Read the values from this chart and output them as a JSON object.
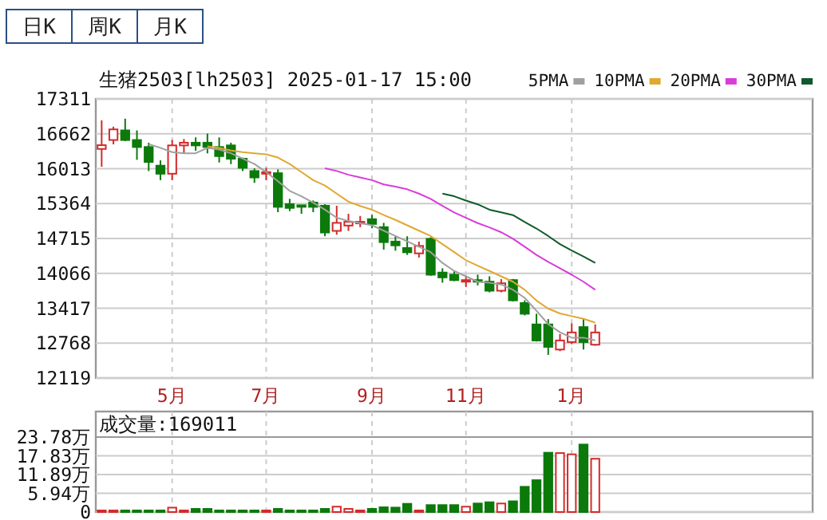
{
  "chart_data": [
    {
      "type": "candlestick",
      "title": "生猪2503[lh2503]  2025-01-17 15:00",
      "annotations": [
        "日K",
        "周K",
        "月K"
      ],
      "categories": [
        null,
        null,
        null,
        null,
        null,
        null,
        "5月",
        null,
        null,
        null,
        null,
        null,
        null,
        null,
        "7月",
        null,
        null,
        null,
        null,
        null,
        null,
        null,
        null,
        "9月",
        null,
        null,
        null,
        null,
        null,
        null,
        null,
        "11月",
        null,
        null,
        null,
        null,
        null,
        null,
        null,
        null,
        "1月",
        null,
        null,
        null,
        null,
        null,
        null,
        null,
        null,
        null,
        null,
        null,
        null,
        null,
        null,
        null,
        null,
        null,
        null,
        null,
        null
      ],
      "ohlc": [
        [
          16380,
          16913,
          16049,
          16450
        ],
        [
          16546,
          16794,
          16466,
          16744
        ],
        [
          16725,
          16943,
          16526,
          16546
        ],
        [
          16546,
          16725,
          16178,
          16416
        ],
        [
          16416,
          16496,
          15969,
          16138
        ],
        [
          16069,
          16168,
          15800,
          15919
        ],
        [
          15919,
          16546,
          15800,
          16446
        ],
        [
          16446,
          16565,
          16297,
          16496
        ],
        [
          16496,
          16595,
          16347,
          16446
        ],
        [
          16496,
          16665,
          16297,
          16416
        ],
        [
          16416,
          16595,
          16128,
          16247
        ],
        [
          16446,
          16496,
          16098,
          16198
        ],
        [
          16198,
          16218,
          15969,
          16029
        ],
        [
          15969,
          16019,
          15750,
          15850
        ],
        [
          15919,
          16029,
          15800,
          15949
        ],
        [
          15929,
          15999,
          15204,
          15303
        ],
        [
          15353,
          15452,
          15224,
          15283
        ],
        [
          15333,
          15333,
          15174,
          15313
        ],
        [
          15383,
          15422,
          15204,
          15303
        ],
        [
          15323,
          15353,
          14756,
          14826
        ],
        [
          14856,
          15323,
          14786,
          15005
        ],
        [
          14955,
          15174,
          14856,
          15025
        ],
        [
          15015,
          15134,
          14925,
          15025
        ],
        [
          15074,
          15154,
          14905,
          14985
        ],
        [
          14925,
          15005,
          14508,
          14647
        ],
        [
          14657,
          14756,
          14488,
          14587
        ],
        [
          14538,
          14756,
          14409,
          14458
        ],
        [
          14438,
          14657,
          14359,
          14577
        ],
        [
          14707,
          14737,
          14021,
          14041
        ],
        [
          14081,
          14160,
          13892,
          13991
        ],
        [
          14041,
          14111,
          13921,
          13941
        ],
        [
          13911,
          14011,
          13812,
          13941
        ],
        [
          13941,
          14041,
          13842,
          13911
        ],
        [
          13911,
          14011,
          13713,
          13743
        ],
        [
          13743,
          13961,
          13713,
          13882
        ],
        [
          13941,
          13961,
          13544,
          13564
        ],
        [
          13514,
          13564,
          13285,
          13315
        ],
        [
          13116,
          13315,
          12798,
          12818
        ],
        [
          13116,
          13216,
          12550,
          12699
        ],
        [
          12649,
          12937,
          12619,
          12818
        ],
        [
          12788,
          13136,
          12749,
          12967
        ],
        [
          13067,
          13216,
          12649,
          12788
        ],
        [
          12739,
          13116,
          12719,
          12967
        ],
        null,
        null,
        null,
        null,
        null,
        null,
        null,
        null,
        null,
        null,
        null,
        null,
        null,
        null,
        null,
        null,
        null,
        null
      ],
      "colors": [
        "#d42a2a",
        "#d42a2a",
        "#0b7a0b",
        "#0b7a0b",
        "#0b7a0b",
        "#0b7a0b",
        "#d42a2a",
        "#d42a2a",
        "#0b7a0b",
        "#0b7a0b",
        "#0b7a0b",
        "#0b7a0b",
        "#0b7a0b",
        "#0b7a0b",
        "#d42a2a",
        "#0b7a0b",
        "#0b7a0b",
        "#0b7a0b",
        "#0b7a0b",
        "#0b7a0b",
        "#d42a2a",
        "#d42a2a",
        "#d42a2a",
        "#0b7a0b",
        "#0b7a0b",
        "#0b7a0b",
        "#0b7a0b",
        "#d42a2a",
        "#0b7a0b",
        "#0b7a0b",
        "#0b7a0b",
        "#d42a2a",
        "#0b7a0b",
        "#0b7a0b",
        "#d42a2a",
        "#0b7a0b",
        "#0b7a0b",
        "#0b7a0b",
        "#0b7a0b",
        "#d42a2a",
        "#d42a2a",
        "#0b7a0b",
        "#d42a2a",
        null,
        null,
        null,
        null,
        null,
        null,
        null,
        null,
        null,
        null,
        null,
        null,
        null,
        null,
        null,
        null,
        null,
        null
      ],
      "series": [
        {
          "name": "5PMA",
          "type": "line",
          "color": "#a0a0a0",
          "values": [
            null,
            null,
            null,
            null,
            16470,
            16400,
            16320,
            16300,
            16300,
            16400,
            16370,
            16300,
            16200,
            16100,
            15950,
            15780,
            15600,
            15500,
            15380,
            15250,
            15100,
            15040,
            15000,
            14960,
            14860,
            14760,
            14660,
            14560,
            14460,
            14260,
            14110,
            14010,
            13910,
            13890,
            13860,
            13760,
            13610,
            13370,
            13120,
            12970,
            12870,
            12870,
            12820,
            null,
            null,
            null,
            null,
            null,
            null,
            null,
            null,
            null,
            null,
            null,
            null,
            null,
            null,
            null,
            null,
            null,
            null
          ]
        },
        {
          "name": "10PMA",
          "type": "line",
          "color": "#e0a830",
          "values": [
            null,
            null,
            null,
            null,
            null,
            null,
            null,
            null,
            null,
            16430,
            16400,
            16350,
            16320,
            16300,
            16280,
            16220,
            16100,
            15950,
            15800,
            15700,
            15550,
            15400,
            15320,
            15250,
            15150,
            15060,
            14960,
            14860,
            14760,
            14610,
            14460,
            14310,
            14210,
            14110,
            14010,
            13910,
            13760,
            13560,
            13410,
            13320,
            13270,
            13220,
            13150,
            null,
            null,
            null,
            null,
            null,
            null,
            null,
            null,
            null,
            null,
            null,
            null,
            null,
            null,
            null,
            null,
            null,
            null
          ]
        },
        {
          "name": "20PMA",
          "type": "line",
          "color": "#d93cd9",
          "values": [
            null,
            null,
            null,
            null,
            null,
            null,
            null,
            null,
            null,
            null,
            null,
            null,
            null,
            null,
            null,
            null,
            null,
            null,
            null,
            16020,
            15970,
            15900,
            15850,
            15800,
            15720,
            15680,
            15630,
            15550,
            15450,
            15320,
            15200,
            15100,
            15000,
            14920,
            14830,
            14710,
            14560,
            14410,
            14280,
            14160,
            14040,
            13910,
            13760,
            null,
            null,
            null,
            null,
            null,
            null,
            null,
            null,
            null,
            null,
            null,
            null,
            null,
            null,
            null,
            null,
            null,
            null
          ]
        },
        {
          "name": "30PMA",
          "type": "line",
          "color": "#0e5a2a",
          "values": [
            null,
            null,
            null,
            null,
            null,
            null,
            null,
            null,
            null,
            null,
            null,
            null,
            null,
            null,
            null,
            null,
            null,
            null,
            null,
            null,
            null,
            null,
            null,
            null,
            null,
            null,
            null,
            null,
            null,
            15550,
            15500,
            15420,
            15350,
            15250,
            15200,
            15150,
            15020,
            14900,
            14760,
            14610,
            14490,
            14380,
            14260,
            null,
            null,
            null,
            null,
            null,
            null,
            null,
            null,
            null,
            null,
            null,
            null,
            null,
            null,
            null,
            null,
            null,
            null
          ]
        }
      ],
      "ylim": [
        12119,
        17311
      ],
      "yticks": [
        12119,
        12768,
        13417,
        14066,
        14715,
        15364,
        16013,
        16662,
        17311
      ],
      "grid": true,
      "legend": "top right"
    },
    {
      "type": "bar",
      "title": "成交量:169011",
      "categories": [
        null,
        null,
        null,
        null,
        null,
        null,
        null,
        null,
        null,
        null,
        null,
        null,
        null,
        null,
        null,
        null,
        null,
        null,
        null,
        null,
        null,
        null,
        null,
        null,
        null,
        null,
        null,
        null,
        null,
        null,
        null,
        null,
        null,
        null,
        null,
        null,
        null,
        null,
        null,
        null,
        null,
        null,
        null,
        null,
        null,
        null,
        null,
        null,
        null,
        null,
        null,
        null,
        null,
        null,
        null,
        null,
        null,
        null,
        null,
        null,
        null
      ],
      "values": [
        0.5,
        0.5,
        0.5,
        0.5,
        0.5,
        0.5,
        1.4,
        0.5,
        1.0,
        1.0,
        0.5,
        0.5,
        0.5,
        0.5,
        0.5,
        1.0,
        0.5,
        0.5,
        0.5,
        1.0,
        1.7,
        1.0,
        0.5,
        1.0,
        1.5,
        1.4,
        2.6,
        0.5,
        2.2,
        2.2,
        2.2,
        1.7,
        2.7,
        3.1,
        2.7,
        3.4,
        8.0,
        10.1,
        18.8,
        18.7,
        18.3,
        21.4,
        16.9,
        null,
        null,
        null,
        null,
        null,
        null,
        null,
        null,
        null,
        null,
        null,
        null,
        null,
        null,
        null,
        null,
        null,
        null
      ],
      "colors": [
        "#d42a2a",
        "#d42a2a",
        "#0b7a0b",
        "#0b7a0b",
        "#0b7a0b",
        "#0b7a0b",
        "#d42a2a",
        "#d42a2a",
        "#0b7a0b",
        "#0b7a0b",
        "#0b7a0b",
        "#0b7a0b",
        "#0b7a0b",
        "#0b7a0b",
        "#d42a2a",
        "#0b7a0b",
        "#0b7a0b",
        "#0b7a0b",
        "#0b7a0b",
        "#0b7a0b",
        "#d42a2a",
        "#d42a2a",
        "#d42a2a",
        "#0b7a0b",
        "#0b7a0b",
        "#0b7a0b",
        "#0b7a0b",
        "#d42a2a",
        "#0b7a0b",
        "#0b7a0b",
        "#0b7a0b",
        "#d42a2a",
        "#0b7a0b",
        "#0b7a0b",
        "#d42a2a",
        "#0b7a0b",
        "#0b7a0b",
        "#0b7a0b",
        "#0b7a0b",
        "#d42a2a",
        "#d42a2a",
        "#0b7a0b",
        "#d42a2a",
        null,
        null,
        null,
        null,
        null,
        null,
        null,
        null,
        null,
        null,
        null,
        null,
        null,
        null,
        null,
        null,
        null,
        null
      ],
      "ylim": [
        0,
        23.78
      ],
      "yticks": [
        0,
        {
          "value": 5.94,
          "label": "5.94万"
        },
        {
          "value": 11.89,
          "label": "11.89万"
        },
        {
          "value": 17.83,
          "label": "17.83万"
        },
        {
          "value": 23.78,
          "label": "23.78万"
        }
      ],
      "grid": true
    }
  ]
}
